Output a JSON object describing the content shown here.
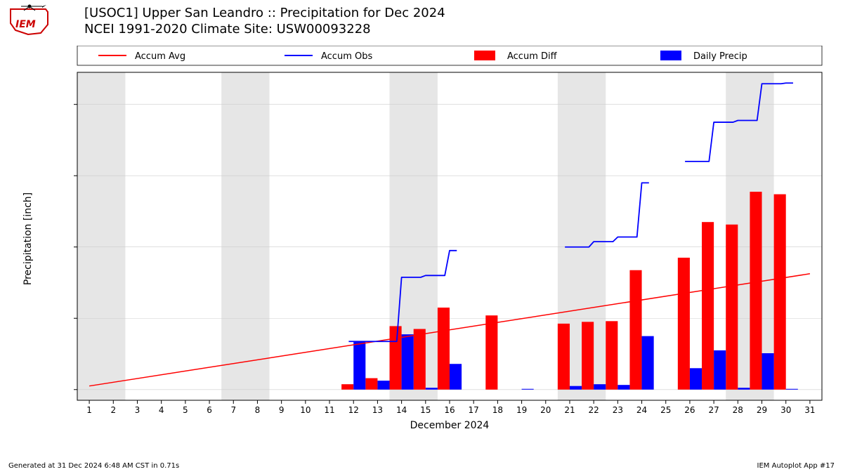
{
  "title_line1": "[USOC1] Upper San Leandro :: Precipitation for Dec 2024",
  "title_line2": "NCEI 1991-2020 Climate Site: USW00093228",
  "footer_left": "Generated at 31 Dec 2024 6:48 AM CST in 0.71s",
  "footer_right": "IEM Autoplot App #17",
  "ylabel": "Precipitation [inch]",
  "xlabel": "December 2024",
  "logo_text": "IEM",
  "legend": {
    "accum_avg": "Accum Avg",
    "accum_obs": "Accum Obs",
    "accum_diff": "Accum Diff",
    "daily_precip": "Daily Precip"
  },
  "chart": {
    "type": "mixed",
    "xlim": [
      0.5,
      31.5
    ],
    "ylim": [
      -0.3,
      8.9
    ],
    "xtick_step": 1,
    "yticks": [
      0,
      2,
      4,
      6,
      8
    ],
    "days": [
      1,
      2,
      3,
      4,
      5,
      6,
      7,
      8,
      9,
      10,
      11,
      12,
      13,
      14,
      15,
      16,
      17,
      18,
      19,
      20,
      21,
      22,
      23,
      24,
      25,
      26,
      27,
      28,
      29,
      30,
      31
    ],
    "weekend_bands": [
      [
        1,
        2
      ],
      [
        7,
        8
      ],
      [
        14,
        15
      ],
      [
        21,
        22
      ],
      [
        28,
        29
      ]
    ],
    "weekend_color": "#e6e6e6",
    "background_color": "#ffffff",
    "axis_color": "#000000",
    "grid_color": "#cccccc",
    "accum_avg": {
      "color": "#ff0000",
      "line_width": 1.5,
      "points": [
        [
          1,
          0.1
        ],
        [
          31,
          3.25
        ]
      ]
    },
    "accum_obs": {
      "color": "#0000ff",
      "line_width": 1.8,
      "points": [
        [
          12,
          1.35
        ],
        [
          13,
          1.35
        ],
        [
          14,
          3.15
        ],
        [
          15,
          3.2
        ],
        [
          16,
          3.9
        ],
        [
          21,
          4.0
        ],
        [
          22,
          4.15
        ],
        [
          23,
          4.28
        ],
        [
          24,
          5.8
        ],
        [
          26,
          6.4
        ],
        [
          27,
          7.5
        ],
        [
          28,
          7.55
        ],
        [
          29,
          8.58
        ],
        [
          30,
          8.6
        ]
      ]
    },
    "accum_diff_bars": {
      "color": "#ff0000",
      "bar_width": 0.5,
      "values": {
        "12": 0.15,
        "13": 0.32,
        "14": 1.78,
        "15": 1.7,
        "16": 2.3,
        "18": 2.08,
        "21": 1.85,
        "22": 1.9,
        "23": 1.92,
        "24": 3.35,
        "26": 3.7,
        "27": 4.7,
        "28": 4.63,
        "29": 5.55,
        "30": 5.48
      }
    },
    "daily_precip_bars": {
      "color": "#0000ff",
      "bar_width": 0.5,
      "values": {
        "12": 1.35,
        "13": 0.25,
        "14": 1.55,
        "15": 0.05,
        "16": 0.72,
        "19": 0.02,
        "21": 0.1,
        "22": 0.15,
        "23": 0.13,
        "24": 1.5,
        "26": 0.6,
        "27": 1.1,
        "28": 0.05,
        "29": 1.02,
        "30": 0.02
      }
    },
    "label_fontsize": 12,
    "tick_fontsize": 12,
    "legend_fontsize": 13
  }
}
